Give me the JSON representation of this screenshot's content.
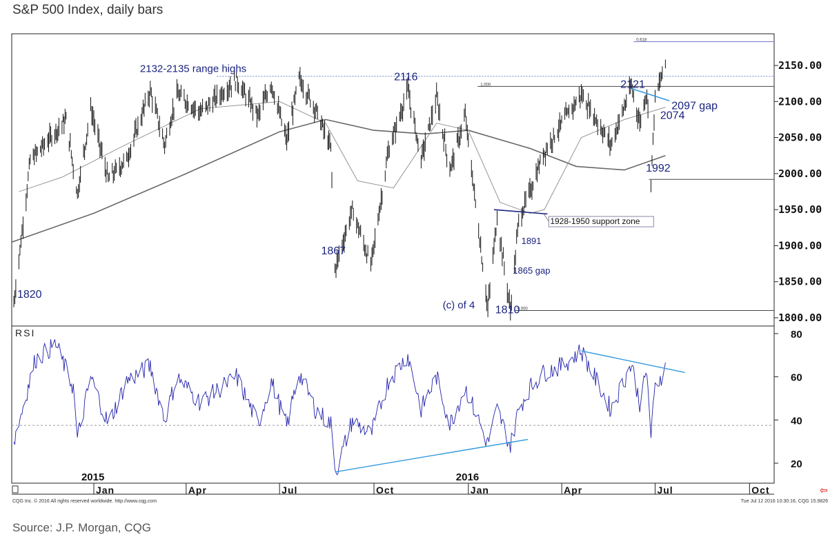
{
  "title": "S&P 500 Index, daily bars",
  "source": "Source: J.P. Morgan, CQG",
  "copyright": "CQG Inc. © 2016 All rights reserved worldwide. http://www.cqg.com",
  "timestamp": "Tue Jul 12 2016 10:30:16, CQG 15.9826",
  "colors": {
    "bars": "#111111",
    "ma_short": "#888888",
    "ma_long": "#666666",
    "rsi": "#2222aa",
    "trend": "#3399dd",
    "annotation": "#1a237e",
    "fib": "#7777cc"
  },
  "chart_data": [
    {
      "type": "line",
      "title": "S&P 500 Index, daily bars",
      "price_axis": {
        "range": [
          1790,
          2190
        ],
        "ticks": [
          1800,
          1850,
          1900,
          1950,
          2000,
          2050,
          2100,
          2150
        ],
        "tick_labels": [
          "1800.00",
          "1850.00",
          "1900.00",
          "1950.00",
          "2000.00",
          "2050.00",
          "2100.00",
          "2150.00"
        ]
      },
      "x_axis": {
        "range": [
          "2014-10-13",
          "2016-10-25"
        ],
        "ticks": [
          {
            "date": "2015-01-01",
            "label": "Jan"
          },
          {
            "date": "2015-04-01",
            "label": "Apr"
          },
          {
            "date": "2015-07-01",
            "label": "Jul"
          },
          {
            "date": "2015-10-01",
            "label": "Oct"
          },
          {
            "date": "2016-01-01",
            "label": "Jan"
          },
          {
            "date": "2016-04-01",
            "label": "Apr"
          },
          {
            "date": "2016-07-01",
            "label": "Jul"
          },
          {
            "date": "2016-10-01",
            "label": "Oct"
          }
        ],
        "year_labels": [
          {
            "date": "2015-01-01",
            "label": "2015"
          },
          {
            "date": "2016-01-01",
            "label": "2016"
          }
        ]
      },
      "price_path": [
        [
          "2014-10-15",
          1820
        ],
        [
          "2014-10-31",
          2018
        ],
        [
          "2014-12-05",
          2075
        ],
        [
          "2014-12-16",
          1972
        ],
        [
          "2014-12-29",
          2090
        ],
        [
          "2015-01-15",
          1992
        ],
        [
          "2015-02-02",
          2020
        ],
        [
          "2015-02-25",
          2115
        ],
        [
          "2015-03-11",
          2040
        ],
        [
          "2015-03-23",
          2110
        ],
        [
          "2015-04-15",
          2085
        ],
        [
          "2015-05-20",
          2130
        ],
        [
          "2015-06-10",
          2080
        ],
        [
          "2015-06-23",
          2125
        ],
        [
          "2015-07-08",
          2045
        ],
        [
          "2015-07-20",
          2132
        ],
        [
          "2015-08-05",
          2090
        ],
        [
          "2015-08-20",
          2035
        ],
        [
          "2015-08-24",
          1867
        ],
        [
          "2015-09-10",
          1950
        ],
        [
          "2015-09-28",
          1872
        ],
        [
          "2015-10-15",
          2030
        ],
        [
          "2015-11-03",
          2116
        ],
        [
          "2015-11-16",
          2020
        ],
        [
          "2015-12-01",
          2105
        ],
        [
          "2015-12-14",
          2005
        ],
        [
          "2015-12-29",
          2080
        ],
        [
          "2016-01-20",
          1812
        ],
        [
          "2016-01-29",
          1940
        ],
        [
          "2016-02-11",
          1810
        ],
        [
          "2016-02-19",
          1935
        ],
        [
          "2016-03-01",
          1975
        ],
        [
          "2016-03-15",
          2030
        ],
        [
          "2016-04-01",
          2070
        ],
        [
          "2016-04-20",
          2110
        ],
        [
          "2016-05-19",
          2040
        ],
        [
          "2016-06-08",
          2121
        ],
        [
          "2016-06-16",
          2070
        ],
        [
          "2016-06-23",
          2115
        ],
        [
          "2016-06-27",
          1992
        ],
        [
          "2016-07-01",
          2104
        ],
        [
          "2016-07-11",
          2152
        ]
      ],
      "ma_short_path": [
        [
          "2014-10-20",
          1975
        ],
        [
          "2014-12-01",
          1995
        ],
        [
          "2015-02-01",
          2040
        ],
        [
          "2015-04-15",
          2090
        ],
        [
          "2015-07-01",
          2100
        ],
        [
          "2015-08-15",
          2070
        ],
        [
          "2015-09-15",
          1990
        ],
        [
          "2015-10-20",
          1980
        ],
        [
          "2015-12-01",
          2070
        ],
        [
          "2016-01-01",
          2060
        ],
        [
          "2016-02-01",
          1960
        ],
        [
          "2016-03-01",
          1945
        ],
        [
          "2016-03-15",
          1950
        ],
        [
          "2016-04-20",
          2050
        ],
        [
          "2016-06-01",
          2075
        ],
        [
          "2016-07-11",
          2092
        ]
      ],
      "ma_long_path": [
        [
          "2014-10-13",
          1905
        ],
        [
          "2015-01-01",
          1945
        ],
        [
          "2015-04-01",
          2000
        ],
        [
          "2015-07-01",
          2058
        ],
        [
          "2015-08-15",
          2075
        ],
        [
          "2015-10-01",
          2060
        ],
        [
          "2015-11-20",
          2055
        ],
        [
          "2016-01-01",
          2060
        ],
        [
          "2016-03-01",
          2035
        ],
        [
          "2016-04-15",
          2010
        ],
        [
          "2016-06-01",
          2005
        ],
        [
          "2016-07-11",
          2025
        ]
      ],
      "levels": [
        {
          "value": 2135,
          "from": "2015-05-01",
          "to": "2016-10-25",
          "style": "dotted",
          "label": "2132-2135 range highs"
        },
        {
          "value": 2183,
          "from": "2016-06-10",
          "to": "2016-10-25",
          "style": "solid",
          "label": "0.618"
        },
        {
          "value": 2121,
          "from": "2016-01-10",
          "to": "2016-10-25",
          "style": "solid",
          "label": "1.000"
        },
        {
          "value": 1992,
          "from": "2016-06-25",
          "to": "2016-10-25",
          "style": "solid",
          "label": ""
        },
        {
          "value": 1810,
          "from": "2016-02-15",
          "to": "2016-10-25",
          "style": "solid",
          "label": "0.000"
        }
      ],
      "trendlines": [
        {
          "from": [
            "2016-01-26",
            1950
          ],
          "to": [
            "2016-03-18",
            1944
          ],
          "label": "1928-1950 support zone"
        },
        {
          "from": [
            "2016-06-08",
            2118
          ],
          "to": [
            "2016-07-15",
            2101
          ],
          "label": "2097 gap"
        }
      ],
      "annotations": [
        {
          "text": "1820",
          "date": "2014-10-15",
          "value": 1820
        },
        {
          "text": "1867",
          "date": "2015-08-24",
          "value": 1867
        },
        {
          "text": "2116",
          "date": "2015-11-03",
          "value": 2116
        },
        {
          "text": "(c) of 4",
          "date": "2016-01-20",
          "value": 1812
        },
        {
          "text": "1810",
          "date": "2016-02-11",
          "value": 1810
        },
        {
          "text": "1865 gap",
          "date": "2016-02-12",
          "value": 1865
        },
        {
          "text": "1891",
          "date": "2016-02-25",
          "value": 1891
        },
        {
          "text": "2121",
          "date": "2016-06-08",
          "value": 2121
        },
        {
          "text": "2074",
          "date": "2016-07-05",
          "value": 2074
        },
        {
          "text": "1992",
          "date": "2016-06-27",
          "value": 1992
        }
      ]
    },
    {
      "type": "line",
      "title": "RSI",
      "y_axis": {
        "range": [
          10,
          85
        ],
        "ticks": [
          20,
          40,
          60,
          80
        ]
      },
      "reference_line": 37.5,
      "rsi_path": [
        [
          "2014-10-15",
          30
        ],
        [
          "2014-11-05",
          68
        ],
        [
          "2014-11-25",
          75
        ],
        [
          "2014-12-12",
          55
        ],
        [
          "2014-12-16",
          31
        ],
        [
          "2014-12-29",
          60
        ],
        [
          "2015-01-15",
          38
        ],
        [
          "2015-02-02",
          58
        ],
        [
          "2015-02-25",
          65
        ],
        [
          "2015-03-11",
          40
        ],
        [
          "2015-03-23",
          60
        ],
        [
          "2015-04-15",
          48
        ],
        [
          "2015-05-20",
          60
        ],
        [
          "2015-06-10",
          38
        ],
        [
          "2015-06-23",
          58
        ],
        [
          "2015-07-08",
          37
        ],
        [
          "2015-07-20",
          62
        ],
        [
          "2015-08-05",
          45
        ],
        [
          "2015-08-20",
          38
        ],
        [
          "2015-08-25",
          16
        ],
        [
          "2015-09-10",
          40
        ],
        [
          "2015-09-28",
          33
        ],
        [
          "2015-10-15",
          58
        ],
        [
          "2015-11-03",
          70
        ],
        [
          "2015-11-16",
          45
        ],
        [
          "2015-12-01",
          60
        ],
        [
          "2015-12-14",
          38
        ],
        [
          "2015-12-29",
          55
        ],
        [
          "2016-01-20",
          29
        ],
        [
          "2016-01-29",
          45
        ],
        [
          "2016-02-11",
          28
        ],
        [
          "2016-02-19",
          45
        ],
        [
          "2016-03-01",
          55
        ],
        [
          "2016-03-15",
          62
        ],
        [
          "2016-04-01",
          65
        ],
        [
          "2016-04-20",
          72
        ],
        [
          "2016-05-19",
          45
        ],
        [
          "2016-06-08",
          66
        ],
        [
          "2016-06-16",
          48
        ],
        [
          "2016-06-23",
          62
        ],
        [
          "2016-06-27",
          33
        ],
        [
          "2016-07-01",
          55
        ],
        [
          "2016-07-11",
          64
        ]
      ],
      "trendlines": [
        {
          "from": [
            "2015-08-25",
            16
          ],
          "to": [
            "2016-02-28",
            31
          ]
        },
        {
          "from": [
            "2016-04-20",
            72
          ],
          "to": [
            "2016-07-30",
            62
          ]
        }
      ]
    }
  ]
}
